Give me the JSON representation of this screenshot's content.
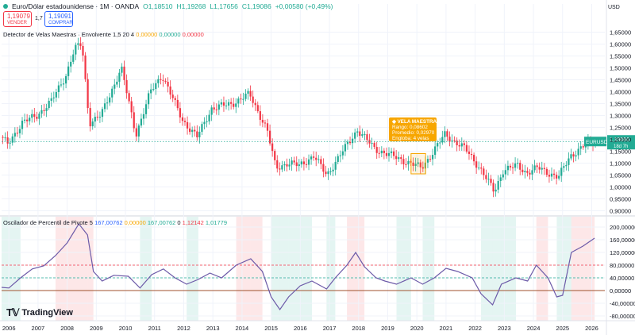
{
  "header": {
    "symbol": "Euro/Dólar estadounidense · 1M · OANDA",
    "open": "O1,18510",
    "high": "H1,19268",
    "low": "L1,17656",
    "close": "C1,19086",
    "change": "+0,00580 (+0,49%)",
    "sell_price": "1,19079",
    "sell_label": "VENDER",
    "spread": "1,7",
    "buy_price": "1,19091",
    "buy_label": "COMPRAR",
    "currency": "USD"
  },
  "indicator1": {
    "name": "Detector de Velas Maestras · Envolvente 1,5 20 4",
    "v1": "0,00000",
    "v2": "0,00000",
    "v3": "0,00000"
  },
  "indicator2": {
    "name": "Oscilador de Percentil de Pivote 5",
    "v1": "167,00762",
    "v2": "0,00000",
    "v3": "167,00762",
    "v4": "0",
    "v5": "1,12142",
    "v6": "1,01779"
  },
  "tooltip": {
    "title": "VELA MAESTRA",
    "line1": "Rango: 0,08602",
    "line2": "Promedio: 0,02970",
    "line3": "Engloba: 4 velas"
  },
  "price_label": {
    "symbol": "EURUSD",
    "price": "1,19086",
    "countdown": "18d 7h"
  },
  "brand": "TradingView",
  "chart_data": [
    {
      "type": "candlestick",
      "title": "Euro/Dólar estadounidense · 1M · OANDA",
      "x_ticks": [
        "2006",
        "2007",
        "2008",
        "2009",
        "2010",
        "2011",
        "2012",
        "2013",
        "2014",
        "2015",
        "2016",
        "2017",
        "2018",
        "2019",
        "2020",
        "2021",
        "2022",
        "2023",
        "2024",
        "2025",
        "2026"
      ],
      "y_ticks": [
        "1,65000",
        "1,60000",
        "1,55000",
        "1,50000",
        "1,45000",
        "1,40000",
        "1,35000",
        "1,30000",
        "1,25000",
        "1,20000",
        "1,15000",
        "1,10000",
        "1,05000",
        "1,00000",
        "0,95000",
        "0,90000"
      ],
      "ylim": [
        0.885,
        1.685
      ],
      "series": [
        {
          "values": [
            [
              2005.75,
              1.21
            ],
            [
              2006.0,
              1.18
            ],
            [
              2006.5,
              1.27
            ],
            [
              2007.0,
              1.3
            ],
            [
              2007.5,
              1.36
            ],
            [
              2008.0,
              1.47
            ],
            [
              2008.3,
              1.58
            ],
            [
              2008.55,
              1.6
            ],
            [
              2008.8,
              1.27
            ],
            [
              2009.2,
              1.3
            ],
            [
              2009.9,
              1.5
            ],
            [
              2010.4,
              1.22
            ],
            [
              2010.9,
              1.4
            ],
            [
              2011.3,
              1.47
            ],
            [
              2012.0,
              1.28
            ],
            [
              2012.5,
              1.21
            ],
            [
              2013.0,
              1.33
            ],
            [
              2013.7,
              1.35
            ],
            [
              2014.3,
              1.39
            ],
            [
              2014.9,
              1.24
            ],
            [
              2015.2,
              1.08
            ],
            [
              2015.6,
              1.1
            ],
            [
              2016.0,
              1.09
            ],
            [
              2016.5,
              1.13
            ],
            [
              2016.95,
              1.05
            ],
            [
              2017.5,
              1.15
            ],
            [
              2018.0,
              1.24
            ],
            [
              2018.6,
              1.16
            ],
            [
              2019.0,
              1.14
            ],
            [
              2019.8,
              1.1
            ],
            [
              2020.2,
              1.08
            ],
            [
              2020.5,
              1.13
            ],
            [
              2021.0,
              1.22
            ],
            [
              2021.7,
              1.16
            ],
            [
              2022.2,
              1.08
            ],
            [
              2022.7,
              0.98
            ],
            [
              2023.0,
              1.07
            ],
            [
              2023.5,
              1.09
            ],
            [
              2023.8,
              1.06
            ],
            [
              2024.2,
              1.08
            ],
            [
              2024.9,
              1.04
            ],
            [
              2025.3,
              1.13
            ],
            [
              2025.75,
              1.17
            ],
            [
              2026.1,
              1.19
            ]
          ]
        }
      ],
      "current_price": 1.19086,
      "reference_level": 1.19086,
      "highlighted_period": [
        2019.8,
        2020.3
      ],
      "colors": {
        "up": "#22ab94",
        "down": "#f23645",
        "dotted": "#22ab94",
        "highlight": "#f7a600"
      }
    },
    {
      "type": "line",
      "title": "Oscilador de Percentil de Pivote 5",
      "y_ticks": [
        "200,00000",
        "160,00000",
        "120,00000",
        "80,00000",
        "40,00000",
        "0,00000",
        "-40,00000",
        "-80,00000"
      ],
      "ylim": [
        -90,
        210
      ],
      "series": [
        {
          "values": [
            [
              2005.75,
              10
            ],
            [
              2006.0,
              8
            ],
            [
              2006.4,
              40
            ],
            [
              2006.8,
              68
            ],
            [
              2007.2,
              78
            ],
            [
              2007.6,
              110
            ],
            [
              2008.0,
              150
            ],
            [
              2008.4,
              210
            ],
            [
              2008.7,
              175
            ],
            [
              2008.9,
              60
            ],
            [
              2009.2,
              30
            ],
            [
              2009.6,
              48
            ],
            [
              2010.1,
              45
            ],
            [
              2010.5,
              8
            ],
            [
              2010.9,
              50
            ],
            [
              2011.3,
              68
            ],
            [
              2011.7,
              40
            ],
            [
              2012.1,
              20
            ],
            [
              2012.5,
              35
            ],
            [
              2012.9,
              55
            ],
            [
              2013.3,
              40
            ],
            [
              2013.8,
              80
            ],
            [
              2014.3,
              100
            ],
            [
              2014.7,
              60
            ],
            [
              2015.0,
              -20
            ],
            [
              2015.3,
              -60
            ],
            [
              2015.6,
              -20
            ],
            [
              2016.0,
              15
            ],
            [
              2016.4,
              30
            ],
            [
              2016.9,
              5
            ],
            [
              2017.2,
              40
            ],
            [
              2017.6,
              80
            ],
            [
              2017.9,
              120
            ],
            [
              2018.2,
              75
            ],
            [
              2018.6,
              40
            ],
            [
              2018.9,
              30
            ],
            [
              2019.3,
              20
            ],
            [
              2019.8,
              40
            ],
            [
              2020.2,
              20
            ],
            [
              2020.6,
              40
            ],
            [
              2021.0,
              70
            ],
            [
              2021.4,
              60
            ],
            [
              2021.9,
              40
            ],
            [
              2022.2,
              -10
            ],
            [
              2022.6,
              -45
            ],
            [
              2022.9,
              20
            ],
            [
              2023.4,
              40
            ],
            [
              2023.8,
              30
            ],
            [
              2024.1,
              80
            ],
            [
              2024.5,
              40
            ],
            [
              2024.8,
              -20
            ],
            [
              2025.0,
              -15
            ],
            [
              2025.3,
              120
            ],
            [
              2025.7,
              140
            ],
            [
              2026.1,
              165
            ]
          ]
        }
      ],
      "reference_lines": [
        80,
        0
      ],
      "colors": {
        "line": "#6c5aa8",
        "green_zone": "#22ab94",
        "red_zone": "#f23645"
      }
    }
  ]
}
